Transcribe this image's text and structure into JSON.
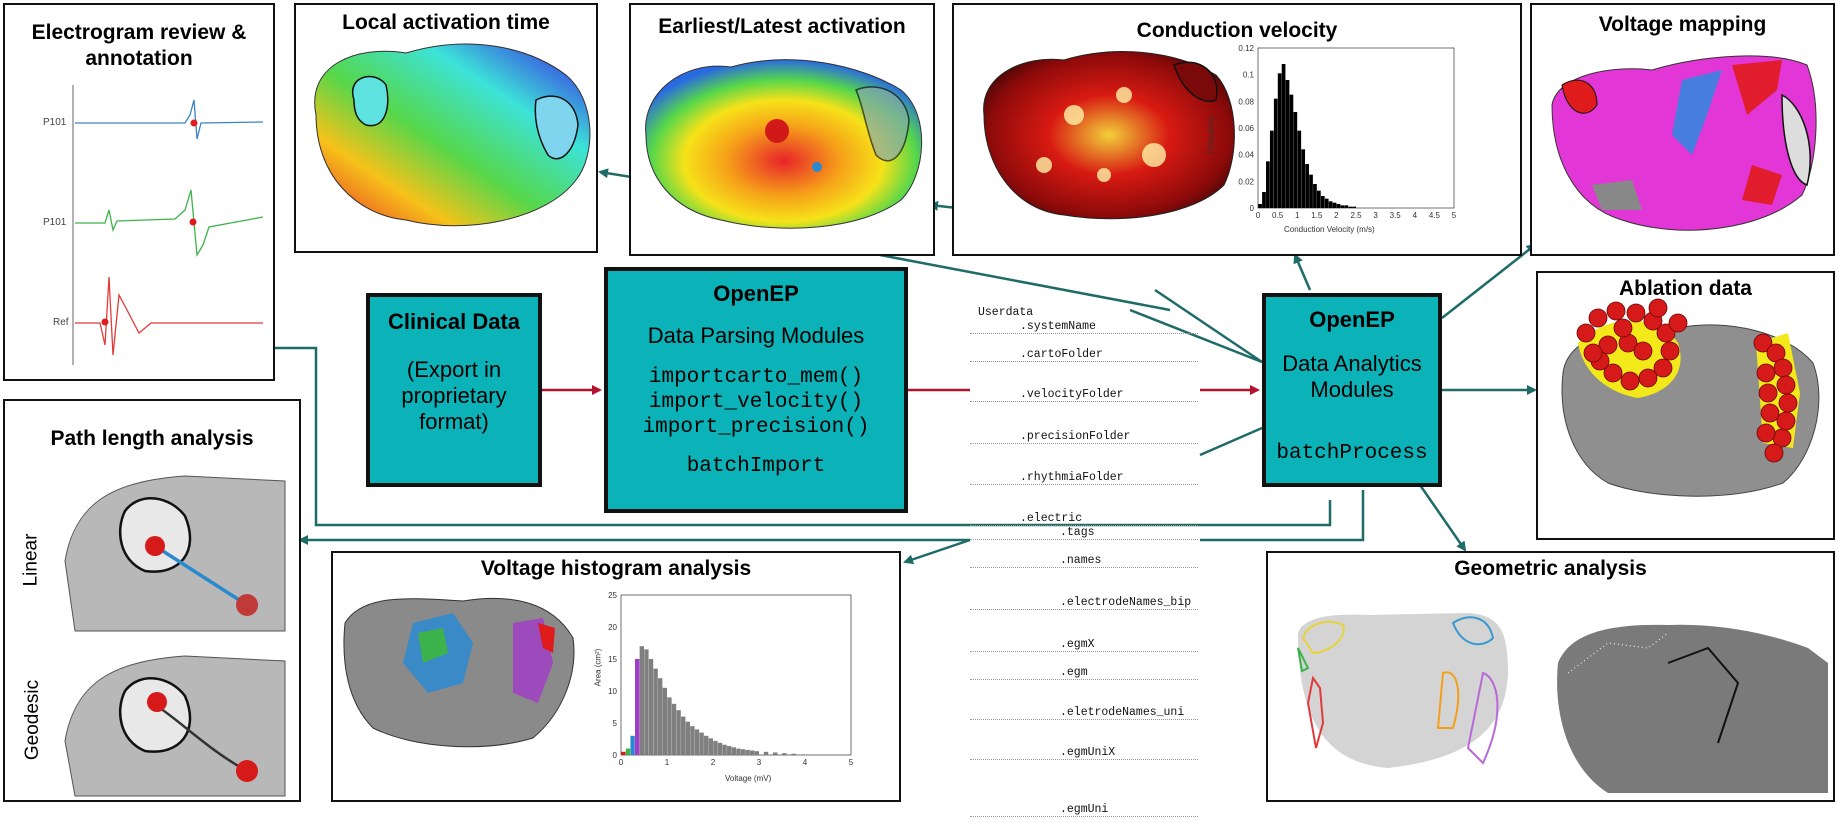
{
  "panels": {
    "electrogram": {
      "title_l1": "Electrogram review &",
      "title_l2": "annotation",
      "labels": [
        "P101",
        "P101",
        "Ref"
      ]
    },
    "lat": {
      "title": "Local activation time"
    },
    "earliest": {
      "title": "Earliest/Latest activation"
    },
    "cv": {
      "title": "Conduction velocity",
      "xlabel": "Conduction Velocity (m/s)",
      "ylabel": "Frequency",
      "yticks": [
        "0.12",
        "0.1",
        "0.08",
        "0.06",
        "0.04",
        "0.02",
        "0"
      ],
      "xticks": [
        "0",
        "0.5",
        "1",
        "1.5",
        "2",
        "2.5",
        "3",
        "3.5",
        "4",
        "4.5",
        "5"
      ]
    },
    "voltage_map": {
      "title": "Voltage mapping"
    },
    "ablation": {
      "title": "Ablation data"
    },
    "path": {
      "title": "Path length analysis",
      "linear": "Linear",
      "geodesic": "Geodesic"
    },
    "vhist": {
      "title": "Voltage histogram analysis",
      "xlabel": "Voltage (mV)",
      "ylabel": "Area (cm²)",
      "yticks": [
        "25",
        "20",
        "15",
        "10",
        "5",
        "0"
      ],
      "xticks": [
        "0",
        "1",
        "2",
        "3",
        "4",
        "5"
      ]
    },
    "geometric": {
      "title": "Geometric analysis"
    }
  },
  "boxes": {
    "clinical": {
      "title": "Clinical Data",
      "l1": "(Export in",
      "l2": "proprietary",
      "l3": "format)"
    },
    "parsing": {
      "title": "OpenEP",
      "subtitle": "Data Parsing Modules",
      "f1": "importcarto_mem()",
      "f2": "import_velocity()",
      "f3": "import_precision()",
      "batch": "batchImport"
    },
    "analytics": {
      "title": "OpenEP",
      "l1": "Data Analytics",
      "l2": "Modules",
      "batch": "batchProcess"
    }
  },
  "userdata": {
    "root": "Userdata",
    "fields": [
      ".systemName",
      ".cartoFolder",
      ".velocityFolder",
      ".precisionFolder",
      ".rhythmiaFolder",
      ".electric"
    ],
    "electric_fields": [
      ".tags",
      ".names",
      ".electrodeNames_bip",
      ".egmX",
      ".egm",
      ".eletrodeNames_uni",
      ".egmUniX",
      ".egmUni"
    ]
  },
  "colors": {
    "teal": "#0bb3b8",
    "arrow_teal": "#1f6b68",
    "arrow_red": "#b3122f"
  },
  "chart_data": [
    {
      "type": "bar",
      "title": "",
      "xlabel": "Conduction Velocity (m/s)",
      "ylabel": "Frequency",
      "xlim": [
        0,
        5
      ],
      "ylim": [
        0,
        0.12
      ],
      "x": [
        0.1,
        0.2,
        0.3,
        0.4,
        0.5,
        0.6,
        0.7,
        0.8,
        0.9,
        1.0,
        1.1,
        1.2,
        1.3,
        1.4,
        1.5,
        1.6,
        1.7,
        1.8,
        1.9,
        2.0,
        2.1,
        2.2,
        2.3,
        2.4,
        2.5
      ],
      "values": [
        0.003,
        0.012,
        0.035,
        0.058,
        0.082,
        0.101,
        0.108,
        0.096,
        0.085,
        0.072,
        0.058,
        0.044,
        0.033,
        0.025,
        0.018,
        0.013,
        0.009,
        0.007,
        0.005,
        0.004,
        0.003,
        0.002,
        0.002,
        0.001,
        0.001
      ]
    },
    {
      "type": "bar",
      "title": "",
      "xlabel": "Voltage (mV)",
      "ylabel": "Area (cm²)",
      "xlim": [
        0,
        5
      ],
      "ylim": [
        0,
        25
      ],
      "x": [
        0.1,
        0.2,
        0.3,
        0.4,
        0.5,
        0.6,
        0.7,
        0.8,
        0.9,
        1.0,
        1.1,
        1.2,
        1.3,
        1.4,
        1.5,
        1.6,
        1.7,
        1.8,
        1.9,
        2.0,
        2.1,
        2.2,
        2.3,
        2.4,
        2.5,
        2.6,
        2.7,
        2.8,
        2.9,
        3.0,
        3.2,
        3.4,
        3.6,
        3.8,
        4.0
      ],
      "values": [
        0.5,
        1,
        3,
        15,
        17,
        16.5,
        15,
        13.5,
        12,
        10.5,
        9,
        8,
        7,
        6,
        5.2,
        4.5,
        4,
        3.5,
        3,
        2.6,
        2.2,
        1.9,
        1.6,
        1.4,
        1.2,
        1,
        0.9,
        0.8,
        0.7,
        0.6,
        0.5,
        0.4,
        0.3,
        0.2,
        0.1
      ]
    }
  ]
}
